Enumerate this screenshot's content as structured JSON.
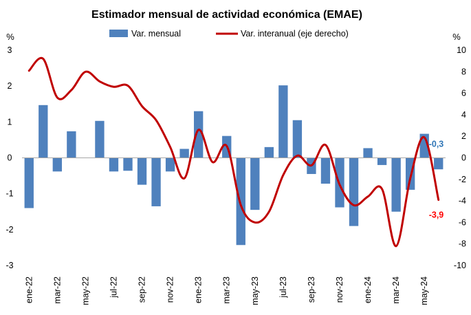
{
  "chart_data": {
    "type": "bar",
    "title": "Estimador mensual de actividad económica (EMAE)",
    "left_unit": "%",
    "right_unit": "%",
    "legend_position": "top",
    "grid": false,
    "y_left_ticks": [
      "3",
      "2",
      "1",
      "0",
      "-1",
      "-2",
      "-3"
    ],
    "y_right_ticks": [
      "10",
      "8",
      "6",
      "4",
      "2",
      "0",
      "-2",
      "-4",
      "-6",
      "-8",
      "-10"
    ],
    "ylim_left": [
      -3,
      3
    ],
    "ylim_right": [
      -10,
      10
    ],
    "categories": [
      "ene-22",
      "feb-22",
      "mar-22",
      "abr-22",
      "may-22",
      "jun-22",
      "jul-22",
      "ago-22",
      "sep-22",
      "oct-22",
      "nov-22",
      "dic-22",
      "ene-23",
      "feb-23",
      "mar-23",
      "abr-23",
      "may-23",
      "jun-23",
      "jul-23",
      "ago-23",
      "sep-23",
      "oct-23",
      "nov-23",
      "dic-23",
      "ene-24",
      "feb-24",
      "mar-24",
      "abr-24",
      "may-24",
      "jun-24"
    ],
    "x_tick_labels": [
      "ene-22",
      "mar-22",
      "may-22",
      "jul-22",
      "sep-22",
      "nov-22",
      "ene-23",
      "mar-23",
      "may-23",
      "jul-23",
      "sep-23",
      "nov-23",
      "ene-24",
      "mar-24",
      "may-24"
    ],
    "series": [
      {
        "name": "Var. mensual",
        "type": "bar",
        "axis": "left",
        "color": "#4f81bd",
        "values": [
          -1.4,
          1.47,
          -0.38,
          0.74,
          0.0,
          1.03,
          -0.38,
          -0.36,
          -0.75,
          -1.35,
          -0.38,
          0.25,
          1.3,
          0.0,
          0.61,
          -2.43,
          -1.45,
          0.3,
          2.02,
          1.05,
          -0.45,
          -0.72,
          -1.38,
          -1.9,
          0.27,
          -0.2,
          -1.5,
          -0.89,
          0.67,
          -0.32
        ]
      },
      {
        "name": "Var. interanual (eje derecho)",
        "type": "line",
        "axis": "right",
        "color": "#c00000",
        "values": [
          8.1,
          9.2,
          5.6,
          6.3,
          8.0,
          7.1,
          6.6,
          6.7,
          4.8,
          3.5,
          1.0,
          -1.9,
          2.6,
          -0.4,
          1.1,
          -4.4,
          -6.0,
          -5.0,
          -1.6,
          0.2,
          -0.7,
          1.2,
          -2.5,
          -4.4,
          -3.6,
          -2.9,
          -8.2,
          -1.9,
          1.9,
          -3.9
        ]
      }
    ],
    "annotations": [
      {
        "text": "-0,3",
        "series": "Var. mensual",
        "color": "#2e75b6"
      },
      {
        "text": "-3,9",
        "series": "Var. interanual (eje derecho)",
        "color": "#ff0000"
      }
    ]
  }
}
